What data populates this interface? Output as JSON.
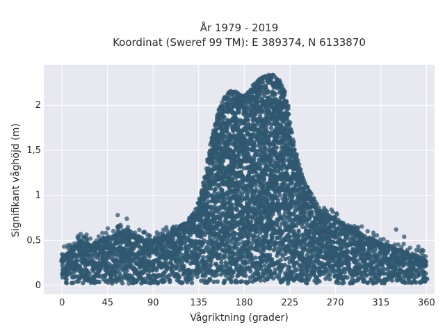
{
  "chart_data": {
    "type": "scatter",
    "title_lines": [
      "År 1979 - 2019",
      "Koordinat (Sweref 99 TM): E 389374, N 6133870"
    ],
    "xlabel": "Vågriktning (grader)",
    "ylabel": "Signifikant våghöjd (m)",
    "xlim": [
      -18,
      368
    ],
    "ylim": [
      -0.1,
      2.45
    ],
    "xticks": [
      0,
      45,
      90,
      135,
      180,
      225,
      270,
      315,
      360
    ],
    "xtick_labels": [
      "0",
      "45",
      "90",
      "135",
      "180",
      "225",
      "270",
      "315",
      "360"
    ],
    "yticks": [
      0,
      0.5,
      1,
      1.5,
      2
    ],
    "ytick_labels": [
      "0",
      "0,5",
      "1",
      "1,5",
      "2"
    ],
    "grid": true,
    "marker_color": "#2f5870",
    "background_color": "#e8e8f0",
    "series": [
      {
        "envelope_direction_deg": [
          0,
          10,
          20,
          30,
          45,
          60,
          75,
          90,
          100,
          110,
          120,
          130,
          135,
          140,
          145,
          150,
          155,
          160,
          165,
          170,
          175,
          180,
          185,
          190,
          195,
          200,
          205,
          210,
          215,
          220,
          225,
          230,
          235,
          240,
          245,
          250,
          255,
          260,
          270,
          280,
          290,
          300,
          310,
          320,
          330,
          340,
          350,
          360
        ],
        "envelope_max_height_m": [
          0.3,
          0.42,
          0.5,
          0.45,
          0.55,
          0.6,
          0.55,
          0.5,
          0.55,
          0.62,
          0.68,
          0.8,
          0.95,
          1.15,
          1.45,
          1.75,
          1.95,
          2.08,
          2.15,
          2.18,
          2.12,
          2.1,
          2.15,
          2.25,
          2.3,
          2.33,
          2.35,
          2.33,
          2.28,
          2.15,
          1.85,
          1.5,
          1.3,
          1.15,
          1.05,
          0.95,
          0.85,
          0.8,
          0.75,
          0.68,
          0.62,
          0.55,
          0.5,
          0.45,
          0.42,
          0.38,
          0.33,
          0.3
        ],
        "envelope_min_height_m": 0.02
      }
    ],
    "outliers": [
      {
        "x": 2,
        "y": 0.43
      },
      {
        "x": 8,
        "y": 0.45
      },
      {
        "x": 36,
        "y": 0.47
      },
      {
        "x": 45,
        "y": 0.53
      },
      {
        "x": 55,
        "y": 0.78
      },
      {
        "x": 64,
        "y": 0.74
      },
      {
        "x": 58,
        "y": 0.65
      },
      {
        "x": 98,
        "y": 0.5
      },
      {
        "x": 110,
        "y": 0.65
      },
      {
        "x": 330,
        "y": 0.62
      },
      {
        "x": 338,
        "y": 0.54
      },
      {
        "x": 352,
        "y": 0.43
      },
      {
        "x": 66,
        "y": 0.02
      },
      {
        "x": 88,
        "y": 0.06
      },
      {
        "x": 16,
        "y": 0.55
      },
      {
        "x": 28,
        "y": 0.52
      }
    ]
  }
}
